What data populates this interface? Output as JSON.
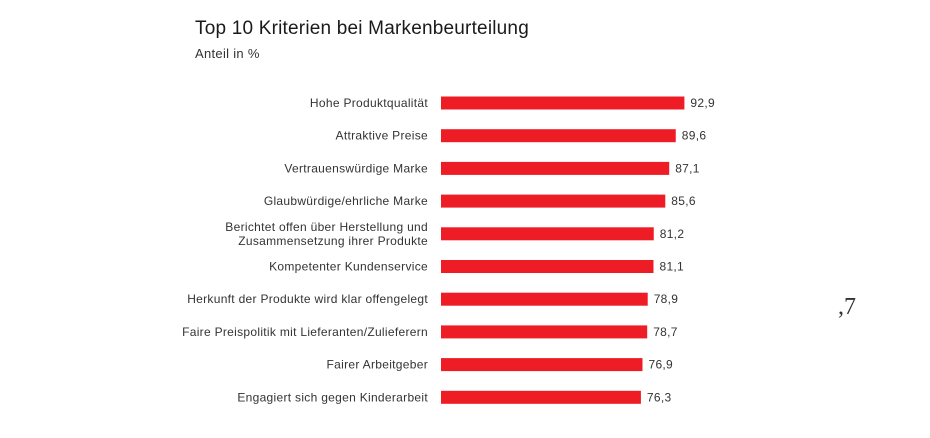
{
  "chart_data": {
    "type": "bar",
    "orientation": "horizontal",
    "title": "Top 10 Kriterien bei Markenbeurteilung",
    "subtitle": "Anteil in %",
    "categories": [
      "Hohe Produktqualität",
      "Attraktive Preise",
      "Vertrauenswürdige Marke",
      "Glaubwürdige/ehrliche Marke",
      "Berichtet offen über Herstellung und\nZusammensetzung ihrer Produkte",
      "Kompetenter Kundenservice",
      "Herkunft der Produkte wird klar offengelegt",
      "Faire Preispolitik mit Lieferanten/Zulieferern",
      "Fairer Arbeitgeber",
      "Engagiert sich gegen Kinderarbeit"
    ],
    "values": [
      92.9,
      89.6,
      87.1,
      85.6,
      81.2,
      81.1,
      78.9,
      78.7,
      76.9,
      76.3
    ],
    "value_labels": [
      "92,9",
      "89,6",
      "87,1",
      "85,6",
      "81,2",
      "81,1",
      "78,9",
      "78,7",
      "76,9",
      "76,3"
    ],
    "xlim": [
      0,
      100
    ],
    "grid": false,
    "legend": "none",
    "bar_color": "#ee1c25"
  },
  "stray_mark": ",7"
}
